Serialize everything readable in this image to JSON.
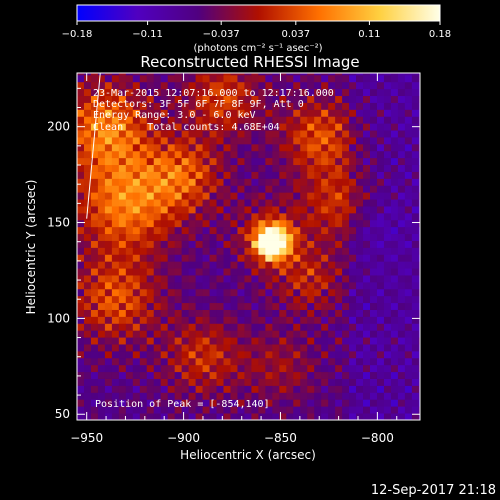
{
  "chart_data": {
    "type": "heatmap",
    "title": "Reconstructed RHESSI Image",
    "xlabel": "Heliocentric X (arcsec)",
    "ylabel": "Heliocentric Y (arcsec)",
    "xlim": [
      -955,
      -778
    ],
    "ylim": [
      47,
      228
    ],
    "xticks": [
      -950,
      -900,
      -850,
      -800
    ],
    "yticks": [
      50,
      100,
      150,
      200
    ],
    "colorbar": {
      "min": -0.18,
      "max": 0.18,
      "ticks": [
        -0.18,
        -0.11,
        -0.037,
        0.037,
        0.11,
        0.18
      ],
      "tick_labels": [
        "−0.18",
        "−0.11",
        "−0.037",
        "0.037",
        "0.11",
        "0.18"
      ],
      "units_label": "(photons cm⁻² s⁻¹ asec⁻²)",
      "colors": [
        "#0000ff",
        "#5000c0",
        "#500080",
        "#b01000",
        "#ff7000",
        "#ffd040",
        "#ffffe8"
      ]
    },
    "peak": {
      "x": -854,
      "y": 140,
      "value": 0.18
    },
    "annotations": {
      "time_range": "23-Mar-2015 12:07:16.000 to 12:17:16.000",
      "detectors": "Detectors: 3F 5F 6F 7F 8F 9F, Att 0",
      "energy": "Energy Range: 3.0 - 6.0 keV",
      "method": "Clean    Total counts: 4.68E+04",
      "peak_text": "Position of Peak = [-854,140]"
    },
    "limb_line": {
      "x": [
        -950,
        -943
      ],
      "y": [
        152,
        228
      ]
    }
  },
  "footer": {
    "timestamp": "12-Sep-2017 21:18"
  }
}
